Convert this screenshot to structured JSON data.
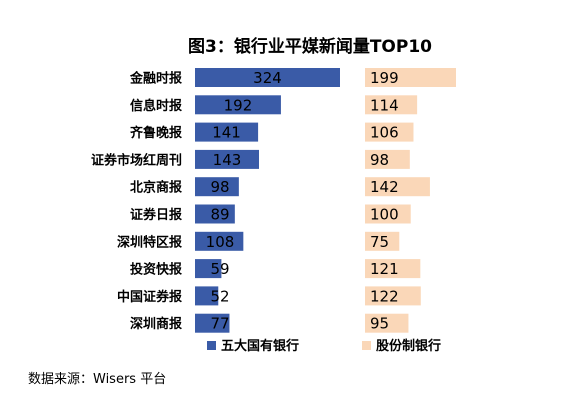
{
  "chart_data": {
    "type": "bar",
    "orientation": "horizontal",
    "title": "图3：银行业平媒新闻量TOP10",
    "categories": [
      "金融时报",
      "信息时报",
      "齐鲁晚报",
      "证券市场红周刊",
      "北京商报",
      "证券日报",
      "深圳特区报",
      "投资快报",
      "中国证券报",
      "深圳商报"
    ],
    "series": [
      {
        "name": "五大国有银行",
        "values": [
          324,
          192,
          141,
          143,
          98,
          89,
          108,
          59,
          52,
          77
        ],
        "color": "#3A5BA7"
      },
      {
        "name": "股份制银行",
        "values": [
          199,
          114,
          106,
          98,
          142,
          100,
          75,
          121,
          122,
          95
        ],
        "color": "#FAD7B8"
      }
    ],
    "legend_position": "bottom",
    "grid": false,
    "xlabel": "",
    "ylabel": ""
  },
  "source_note": "数据来源：Wisers 平台"
}
